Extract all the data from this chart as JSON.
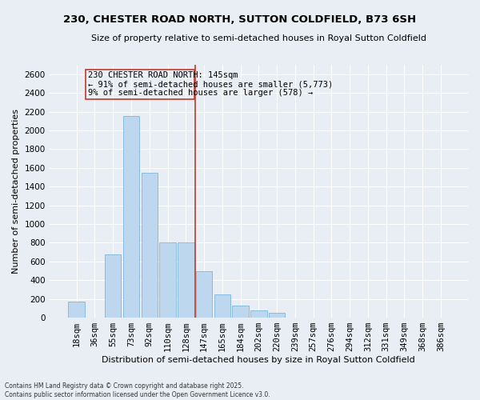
{
  "title": "230, CHESTER ROAD NORTH, SUTTON COLDFIELD, B73 6SH",
  "subtitle": "Size of property relative to semi-detached houses in Royal Sutton Coldfield",
  "xlabel": "Distribution of semi-detached houses by size in Royal Sutton Coldfield",
  "ylabel": "Number of semi-detached properties",
  "footnote1": "Contains HM Land Registry data © Crown copyright and database right 2025.",
  "footnote2": "Contains public sector information licensed under the Open Government Licence v3.0.",
  "annotation_line1": "230 CHESTER ROAD NORTH: 145sqm",
  "annotation_line2": "← 91% of semi-detached houses are smaller (5,773)",
  "annotation_line3": "9% of semi-detached houses are larger (578) →",
  "categories": [
    "18sqm",
    "36sqm",
    "55sqm",
    "73sqm",
    "92sqm",
    "110sqm",
    "128sqm",
    "147sqm",
    "165sqm",
    "184sqm",
    "202sqm",
    "220sqm",
    "239sqm",
    "257sqm",
    "276sqm",
    "294sqm",
    "312sqm",
    "331sqm",
    "349sqm",
    "368sqm",
    "386sqm"
  ],
  "values": [
    175,
    0,
    675,
    2150,
    1550,
    800,
    800,
    500,
    250,
    125,
    75,
    50,
    0,
    0,
    0,
    0,
    0,
    0,
    0,
    0,
    0
  ],
  "ylim": [
    0,
    2700
  ],
  "yticks": [
    0,
    200,
    400,
    600,
    800,
    1000,
    1200,
    1400,
    1600,
    1800,
    2000,
    2200,
    2400,
    2600
  ],
  "bar_color": "#bdd7ee",
  "bar_edge_color": "#6baed6",
  "vline_color": "#c0392b",
  "bg_color": "#e8eef4",
  "grid_color": "#ffffff",
  "title_fontsize": 9.5,
  "subtitle_fontsize": 8,
  "tick_fontsize": 7.5,
  "ylabel_fontsize": 8,
  "xlabel_fontsize": 8
}
